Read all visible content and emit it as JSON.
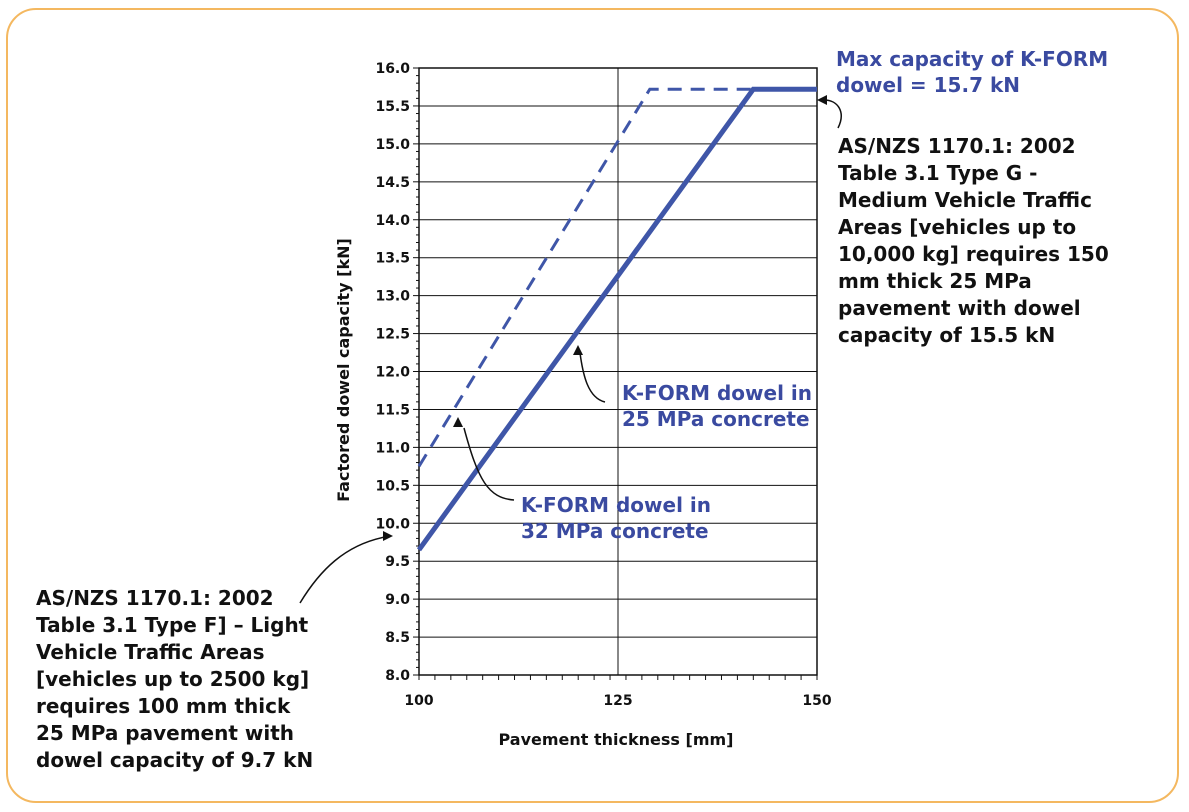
{
  "colors": {
    "frame": "#f4b860",
    "series": "#3f56a8",
    "annotation_text": "#3a4aa0",
    "arrow": "#111111"
  },
  "annotations": {
    "max_capacity": "Max capacity of K-FORM\ndowel = 15.7 kN",
    "type_g": "AS/NZS 1170.1: 2002\nTable 3.1 Type G  -\nMedium Vehicle Traffic\nAreas [vehicles up to\n10,000 kg] requires 150\nmm thick 25 MPa\npavement with dowel\ncapacity  of 15.5 kN",
    "type_f": "AS/NZS 1170.1: 2002\nTable 3.1 Type F] – Light\nVehicle Traffic Areas\n[vehicles up to 2500 kg]\nrequires 100 mm thick\n25 MPa pavement with\ndowel capacity of 9.7 kN",
    "label_25": "K-FORM  dowel in\n25 MPa concrete",
    "label_32": "K-FORM   dowel in\n32 MPa concrete"
  },
  "chart_data": {
    "type": "line",
    "xlabel": "Pavement thickness [mm]",
    "ylabel": "Factored dowel capacity [kN]",
    "xlim": [
      100,
      150
    ],
    "ylim": [
      8.0,
      16.0
    ],
    "x_ticks": [
      "100",
      "125",
      "150"
    ],
    "y_ticks": [
      "8.0",
      "8.5",
      "9.0",
      "9.5",
      "10.0",
      "10.5",
      "11.0",
      "11.5",
      "12.0",
      "12.5",
      "13.0",
      "13.5",
      "14.0",
      "14.5",
      "15.0",
      "15.5",
      "16.0"
    ],
    "grid": true,
    "series": [
      {
        "name": "K-FORM dowel in 25 MPa concrete",
        "style": "solid",
        "x": [
          100,
          142,
          150
        ],
        "y": [
          9.65,
          15.72,
          15.72
        ]
      },
      {
        "name": "K-FORM dowel in 32 MPa concrete",
        "style": "dashed",
        "x": [
          100,
          129,
          142
        ],
        "y": [
          10.75,
          15.72,
          15.72
        ]
      }
    ]
  }
}
